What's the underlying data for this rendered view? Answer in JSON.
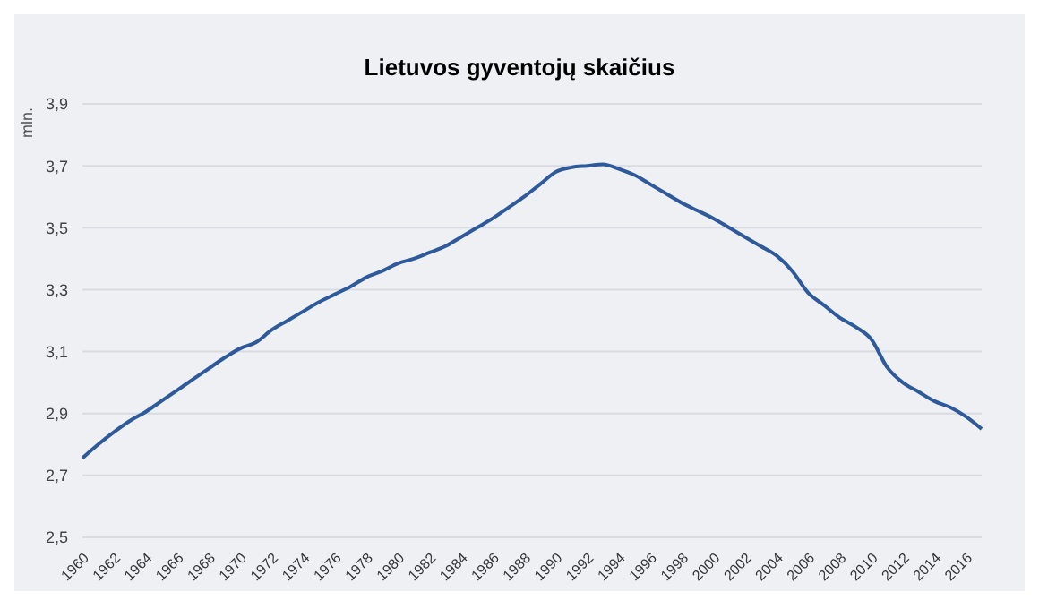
{
  "chart_data": {
    "type": "line",
    "title": "Lietuvos gyventojų skaičius",
    "ylabel": "mln.",
    "categories": [
      "1960",
      null,
      "1962",
      null,
      "1964",
      null,
      "1966",
      null,
      "1968",
      null,
      "1970",
      null,
      "1972",
      null,
      "1974",
      null,
      "1976",
      null,
      "1978",
      null,
      "1980",
      null,
      "1982",
      null,
      "1984",
      null,
      "1986",
      null,
      "1988",
      null,
      "1990",
      null,
      "1992",
      null,
      "1994",
      null,
      "1996",
      null,
      "1998",
      null,
      "2000",
      null,
      "2002",
      null,
      "2004",
      null,
      "2006",
      null,
      "2008",
      null,
      "2010",
      null,
      "2012",
      null,
      "2014",
      null,
      "2016",
      null
    ],
    "series": [
      {
        "color": "#2e5a9c",
        "values": [
          2.756,
          2.8,
          2.84,
          2.876,
          2.905,
          2.94,
          2.975,
          3.01,
          3.045,
          3.08,
          3.11,
          3.13,
          3.17,
          3.2,
          3.23,
          3.26,
          3.285,
          3.31,
          3.34,
          3.36,
          3.385,
          3.4,
          3.42,
          3.44,
          3.47,
          3.5,
          3.53,
          3.565,
          3.6,
          3.64,
          3.68,
          3.695,
          3.7,
          3.705,
          3.69,
          3.67,
          3.64,
          3.61,
          3.58,
          3.555,
          3.53,
          3.5,
          3.47,
          3.44,
          3.41,
          3.36,
          3.29,
          3.25,
          3.21,
          3.18,
          3.14,
          3.05,
          3.0,
          2.97,
          2.94,
          2.92,
          2.89,
          2.85
        ]
      }
    ],
    "ylim": [
      2.5,
      3.9
    ],
    "yticks": [
      {
        "value": 2.5,
        "label": "2,5"
      },
      {
        "value": 2.7,
        "label": "2,7"
      },
      {
        "value": 2.9,
        "label": "2,9"
      },
      {
        "value": 3.1,
        "label": "3,1"
      },
      {
        "value": 3.3,
        "label": "3,3"
      },
      {
        "value": 3.5,
        "label": "3,5"
      },
      {
        "value": 3.7,
        "label": "3,7"
      },
      {
        "value": 3.9,
        "label": "3,9"
      }
    ],
    "grid": "y",
    "marker": "none",
    "line_style": "solid"
  }
}
